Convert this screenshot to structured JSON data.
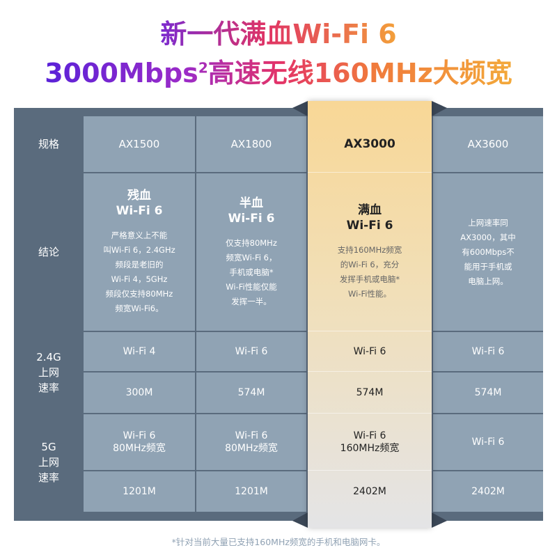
{
  "title": {
    "line1": "新一代满血Wi-Fi 6",
    "line2_main": "3000Mbps",
    "line2_sup": "2",
    "line2_rest": "高速无线160MHz大频宽"
  },
  "table": {
    "row_labels": {
      "spec": "规格",
      "conclusion": "结论",
      "g24": "2.4G\n上网\n速率",
      "g5": "5G\n上网\n速率"
    },
    "columns": [
      {
        "model": "AX1500",
        "verdict": "残血\nWi-Fi 6",
        "desc": "严格意义上不能\n叫Wi-Fi 6，2.4GHz\n频段是老旧的\nWi-Fi 4，5GHz\n频段仅支持80MHz\n频宽Wi-Fi6。",
        "g24_std": "Wi-Fi 4",
        "g24_speed": "300M",
        "g5_std": "Wi-Fi 6\n80MHz频宽",
        "g5_speed": "1201M"
      },
      {
        "model": "AX1800",
        "verdict": "半血\nWi-Fi 6",
        "desc": "仅支持80MHz\n频宽Wi-Fi 6，\n手机或电脑*\nWi-Fi性能仅能\n发挥一半。",
        "g24_std": "Wi-Fi 6",
        "g24_speed": "574M",
        "g5_std": "Wi-Fi 6\n80MHz频宽",
        "g5_speed": "1201M"
      },
      {
        "model": "AX3000",
        "verdict": "满血\nWi-Fi 6",
        "desc": "支持160MHz频宽\n的Wi-Fi 6，充分\n发挥手机或电脑*\nWi-Fi性能。",
        "g24_std": "Wi-Fi 6",
        "g24_speed": "574M",
        "g5_std": "Wi-Fi 6\n160MHz频宽",
        "g5_speed": "2402M",
        "highlighted": true
      },
      {
        "model": "AX3600",
        "verdict": "",
        "desc": "上网速率同\nAX3000，其中\n有600Mbps不\n能用于手机或\n电脑上网。",
        "g24_std": "Wi-Fi 6",
        "g24_speed": "574M",
        "g5_std": "Wi-Fi 6",
        "g5_speed": "2402M"
      }
    ]
  },
  "footnote": "*针对当前大量已支持160MHz频宽的手机和电脑网卡。",
  "colors": {
    "frame": "#5a6b7d",
    "cell": "#90a3b4",
    "highlight": "#f8d796"
  }
}
